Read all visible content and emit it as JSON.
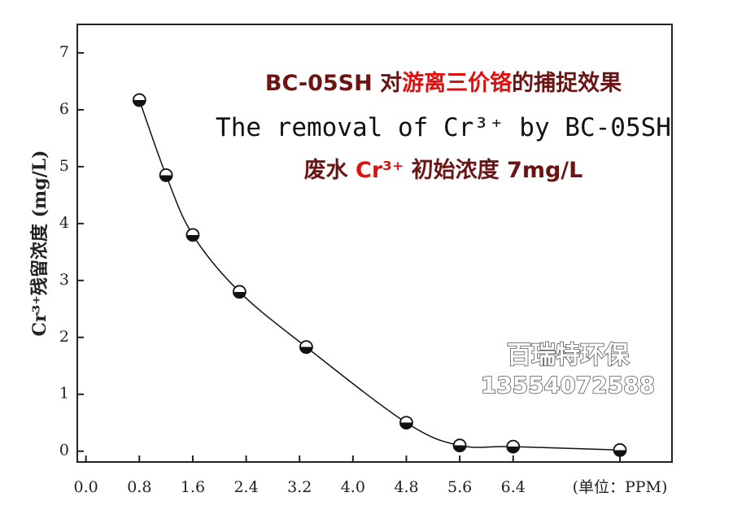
{
  "chart_data": {
    "type": "line",
    "y_label": "Cr³⁺残留浓度 (mg/L)",
    "annotations": [
      {
        "segments": [
          {
            "text": "BC-05SH 对",
            "color": "#6b1414"
          },
          {
            "text": "游离三价铬",
            "color": "#e01010"
          },
          {
            "text": "的捕捉效果",
            "color": "#6b1414"
          }
        ]
      },
      {
        "segments": [
          {
            "text": "The removal of Cr³⁺ by BC-05SH",
            "color": "#111111"
          }
        ]
      },
      {
        "segments": [
          {
            "text": "废水 ",
            "color": "#6b1414"
          },
          {
            "text": "Cr³⁺",
            "color": "#e01010"
          },
          {
            "text": " 初始浓度 7mg/L",
            "color": "#6b1414"
          }
        ]
      }
    ],
    "watermark": [
      "百瑞特环保",
      "13554072588"
    ],
    "x": [
      0.8,
      1.2,
      1.6,
      2.3,
      3.3,
      4.8,
      5.6,
      6.4,
      8.0
    ],
    "series": [
      {
        "color": "#111111",
        "values": [
          6.17,
          4.85,
          3.8,
          2.8,
          1.83,
          0.5,
          0.1,
          0.08,
          0.02
        ]
      }
    ],
    "xlim": [
      -0.13,
      8.78
    ],
    "ylim": [
      -0.19,
      7.5
    ],
    "xticks": [
      {
        "value": 0,
        "label": "0.0"
      },
      0.8,
      1.6,
      2.4,
      3.2,
      {
        "value": 4,
        "label": "4.0"
      },
      4.8,
      5.6,
      6.4,
      {
        "value": 8,
        "label": "(单位：PPM)"
      }
    ],
    "yticks": [
      0,
      1,
      2,
      3,
      4,
      5,
      6,
      7
    ]
  }
}
